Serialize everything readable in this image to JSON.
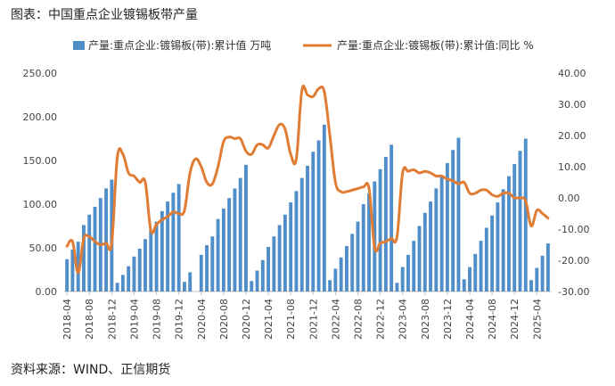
{
  "header": {
    "title": "图表：中国重点企业镀锡板带产量"
  },
  "footer": {
    "source": "资料来源：WIND、正信期货"
  },
  "chart_data": {
    "type": "bar+line",
    "x_tick_labels": [
      "2018-04",
      "2018-08",
      "2018-12",
      "2019-04",
      "2019-08",
      "2019-12",
      "2020-04",
      "2020-08",
      "2020-12",
      "2021-04",
      "2021-08",
      "2021-12",
      "2022-04",
      "2022-08",
      "2022-12",
      "2023-04",
      "2023-08",
      "2023-12",
      "2024-04",
      "2024-08",
      "2024-12",
      "2025-04"
    ],
    "left_axis": {
      "ylim": [
        0,
        250
      ],
      "ticks": [
        "0.00",
        "50.00",
        "100.00",
        "150.00",
        "200.00",
        "250.00"
      ]
    },
    "right_axis": {
      "ylim": [
        -30,
        40
      ],
      "ticks": [
        "-30.00",
        "-20.00",
        "-10.00",
        "0.00",
        "10.00",
        "20.00",
        "30.00",
        "40.00"
      ]
    },
    "colors": {
      "bar": "#4f8ec8",
      "line": "#e07c34",
      "axis": "#bfbfbf"
    },
    "series": [
      {
        "name": "产量:重点企业:镀锡板(带):累计值 万吨",
        "axis": "left",
        "type": "bar",
        "values": [
          37,
          48,
          57,
          76,
          88,
          97,
          107,
          118,
          128,
          10,
          19,
          29,
          40,
          49,
          60,
          70,
          80,
          92,
          103,
          113,
          123,
          11,
          22,
          null,
          42,
          53,
          63,
          83,
          95,
          107,
          118,
          130,
          145,
          12,
          24,
          36,
          51,
          63,
          76,
          88,
          102,
          115,
          130,
          144,
          160,
          173,
          191,
          13,
          26,
          39,
          52,
          66,
          80,
          100,
          112,
          126,
          140,
          154,
          168,
          10,
          28,
          42,
          58,
          75,
          90,
          103,
          118,
          133,
          147,
          162,
          176,
          14,
          28,
          43,
          58,
          73,
          87,
          102,
          117,
          132,
          146,
          161,
          175,
          13,
          27,
          41,
          55
        ]
      },
      {
        "name": "产量:重点企业:镀锡板(带):累计值:同比 %",
        "axis": "right",
        "type": "line",
        "values": [
          -15.5,
          -14,
          -24,
          -13,
          -12.5,
          -14,
          -15,
          -14.5,
          -14.5,
          13,
          14,
          8,
          7,
          5,
          5,
          -10.5,
          -8.5,
          -7,
          -6,
          -4.5,
          -5,
          -4,
          8,
          12.5,
          10,
          5,
          4.5,
          10,
          18,
          19.5,
          19,
          19,
          15,
          14,
          17,
          17,
          16,
          20,
          23.5,
          22,
          14,
          12.5,
          34.5,
          33,
          32.5,
          35,
          34,
          20,
          5,
          2,
          2,
          2.5,
          3,
          3.5,
          3,
          -16,
          -14.5,
          -14,
          -13,
          -12.5,
          8,
          8.5,
          9,
          8,
          8.5,
          8,
          7,
          7,
          6,
          5.5,
          4.5,
          5,
          1.5,
          1.5,
          2.5,
          2.5,
          1,
          0.5,
          1.5,
          1.5,
          0,
          0,
          -1,
          -9,
          -4,
          -5,
          -6.5
        ]
      }
    ]
  }
}
